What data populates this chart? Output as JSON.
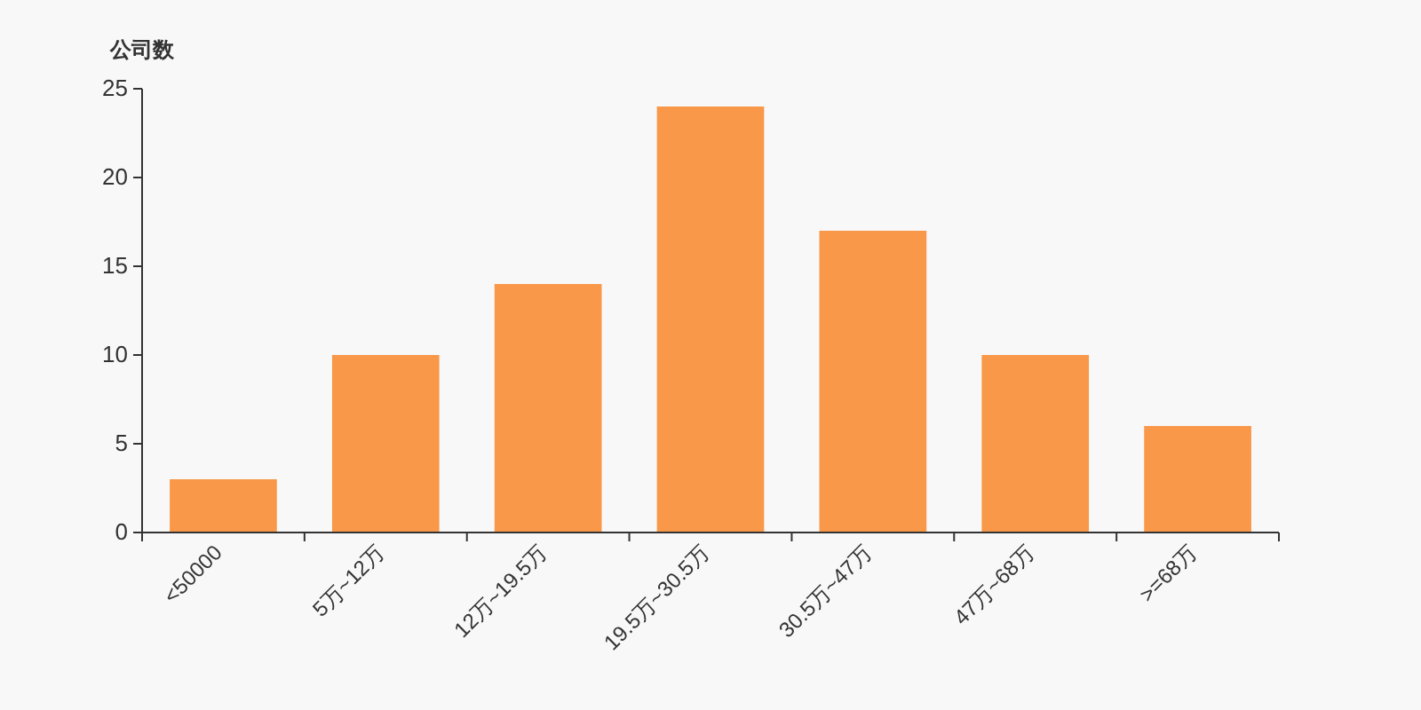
{
  "chart_data": {
    "type": "bar",
    "ylabel": "公司数",
    "categories": [
      "<50000",
      "5万~12万",
      "12万~19.5万",
      "19.5万~30.5万",
      "30.5万~47万",
      "47万~68万",
      ">=68万"
    ],
    "values": [
      3,
      10,
      14,
      24,
      17,
      10,
      6
    ],
    "color": "#f89848",
    "ylim": [
      0,
      25
    ],
    "yticks": [
      0,
      5,
      10,
      15,
      20,
      25
    ]
  }
}
